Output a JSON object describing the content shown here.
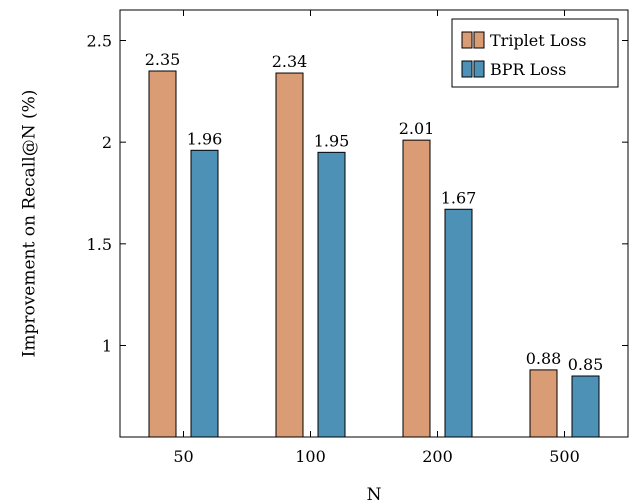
{
  "chart_data": {
    "type": "bar",
    "xlabel": "N",
    "ylabel": "Improvement on Recall@N (%)",
    "categories": [
      "50",
      "100",
      "200",
      "500"
    ],
    "series": [
      {
        "name": "Triplet Loss",
        "values": [
          2.35,
          2.34,
          2.01,
          0.88
        ],
        "labels": [
          "2.35",
          "2.34",
          "2.01",
          "0.88"
        ],
        "color": "#DA9C74"
      },
      {
        "name": "BPR Loss",
        "values": [
          1.96,
          1.95,
          1.67,
          0.85
        ],
        "labels": [
          "1.96",
          "1.95",
          "1.67",
          "0.85"
        ],
        "color": "#4D92B6"
      }
    ],
    "ylim": [
      0.55,
      2.65
    ],
    "yticks": [
      1,
      1.5,
      2,
      2.5
    ],
    "ytick_labels": [
      "1",
      "1.5",
      "2",
      "2.5"
    ],
    "grid": false,
    "legend_position": "top-right"
  }
}
